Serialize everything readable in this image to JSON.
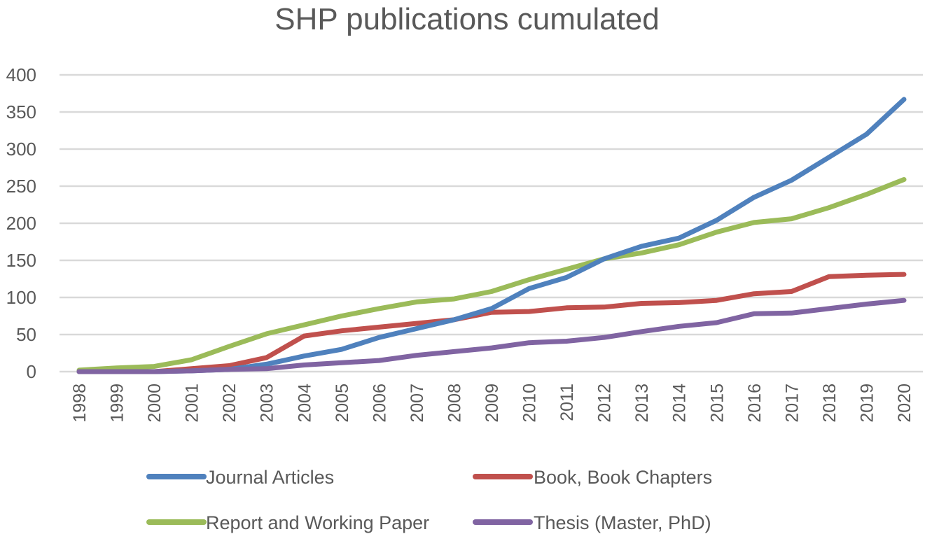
{
  "chart_data": {
    "type": "line",
    "title": "SHP publications cumulated",
    "xlabel": "",
    "ylabel": "",
    "ylim": [
      0,
      400
    ],
    "yticks": [
      0,
      50,
      100,
      150,
      200,
      250,
      300,
      350,
      400
    ],
    "grid": true,
    "legend_position": "bottom",
    "categories": [
      "1998",
      "1999",
      "2000",
      "2001",
      "2002",
      "2003",
      "2004",
      "2005",
      "2006",
      "2007",
      "2008",
      "2009",
      "2010",
      "2011",
      "2012",
      "2013",
      "2014",
      "2015",
      "2016",
      "2017",
      "2018",
      "2019",
      "2020"
    ],
    "series": [
      {
        "name": "Journal Articles",
        "color": "#4f81bd",
        "values": [
          0,
          0,
          0,
          1,
          3,
          10,
          21,
          30,
          46,
          58,
          70,
          85,
          112,
          127,
          152,
          169,
          180,
          204,
          235,
          258,
          289,
          320,
          367
        ]
      },
      {
        "name": "Book, Book Chapters",
        "color": "#c0504d",
        "values": [
          0,
          0,
          0,
          4,
          8,
          19,
          48,
          55,
          60,
          65,
          70,
          80,
          81,
          86,
          87,
          92,
          93,
          96,
          105,
          108,
          128,
          130,
          131
        ]
      },
      {
        "name": "Report and Working Paper",
        "color": "#9bbb59",
        "values": [
          2,
          5,
          7,
          16,
          34,
          51,
          63,
          75,
          85,
          94,
          98,
          108,
          124,
          138,
          152,
          160,
          171,
          188,
          201,
          206,
          221,
          239,
          259
        ]
      },
      {
        "name": "Thesis (Master, PhD)",
        "color": "#8064a2",
        "values": [
          0,
          0,
          0,
          1,
          3,
          4,
          9,
          12,
          15,
          22,
          27,
          32,
          39,
          41,
          46,
          54,
          61,
          66,
          78,
          79,
          85,
          91,
          96
        ]
      }
    ]
  },
  "legend": {
    "items": [
      {
        "label": "Journal Articles",
        "color": "#4f81bd"
      },
      {
        "label": "Book, Book Chapters",
        "color": "#c0504d"
      },
      {
        "label": "Report and Working Paper",
        "color": "#9bbb59"
      },
      {
        "label": "Thesis (Master, PhD)",
        "color": "#8064a2"
      }
    ]
  }
}
